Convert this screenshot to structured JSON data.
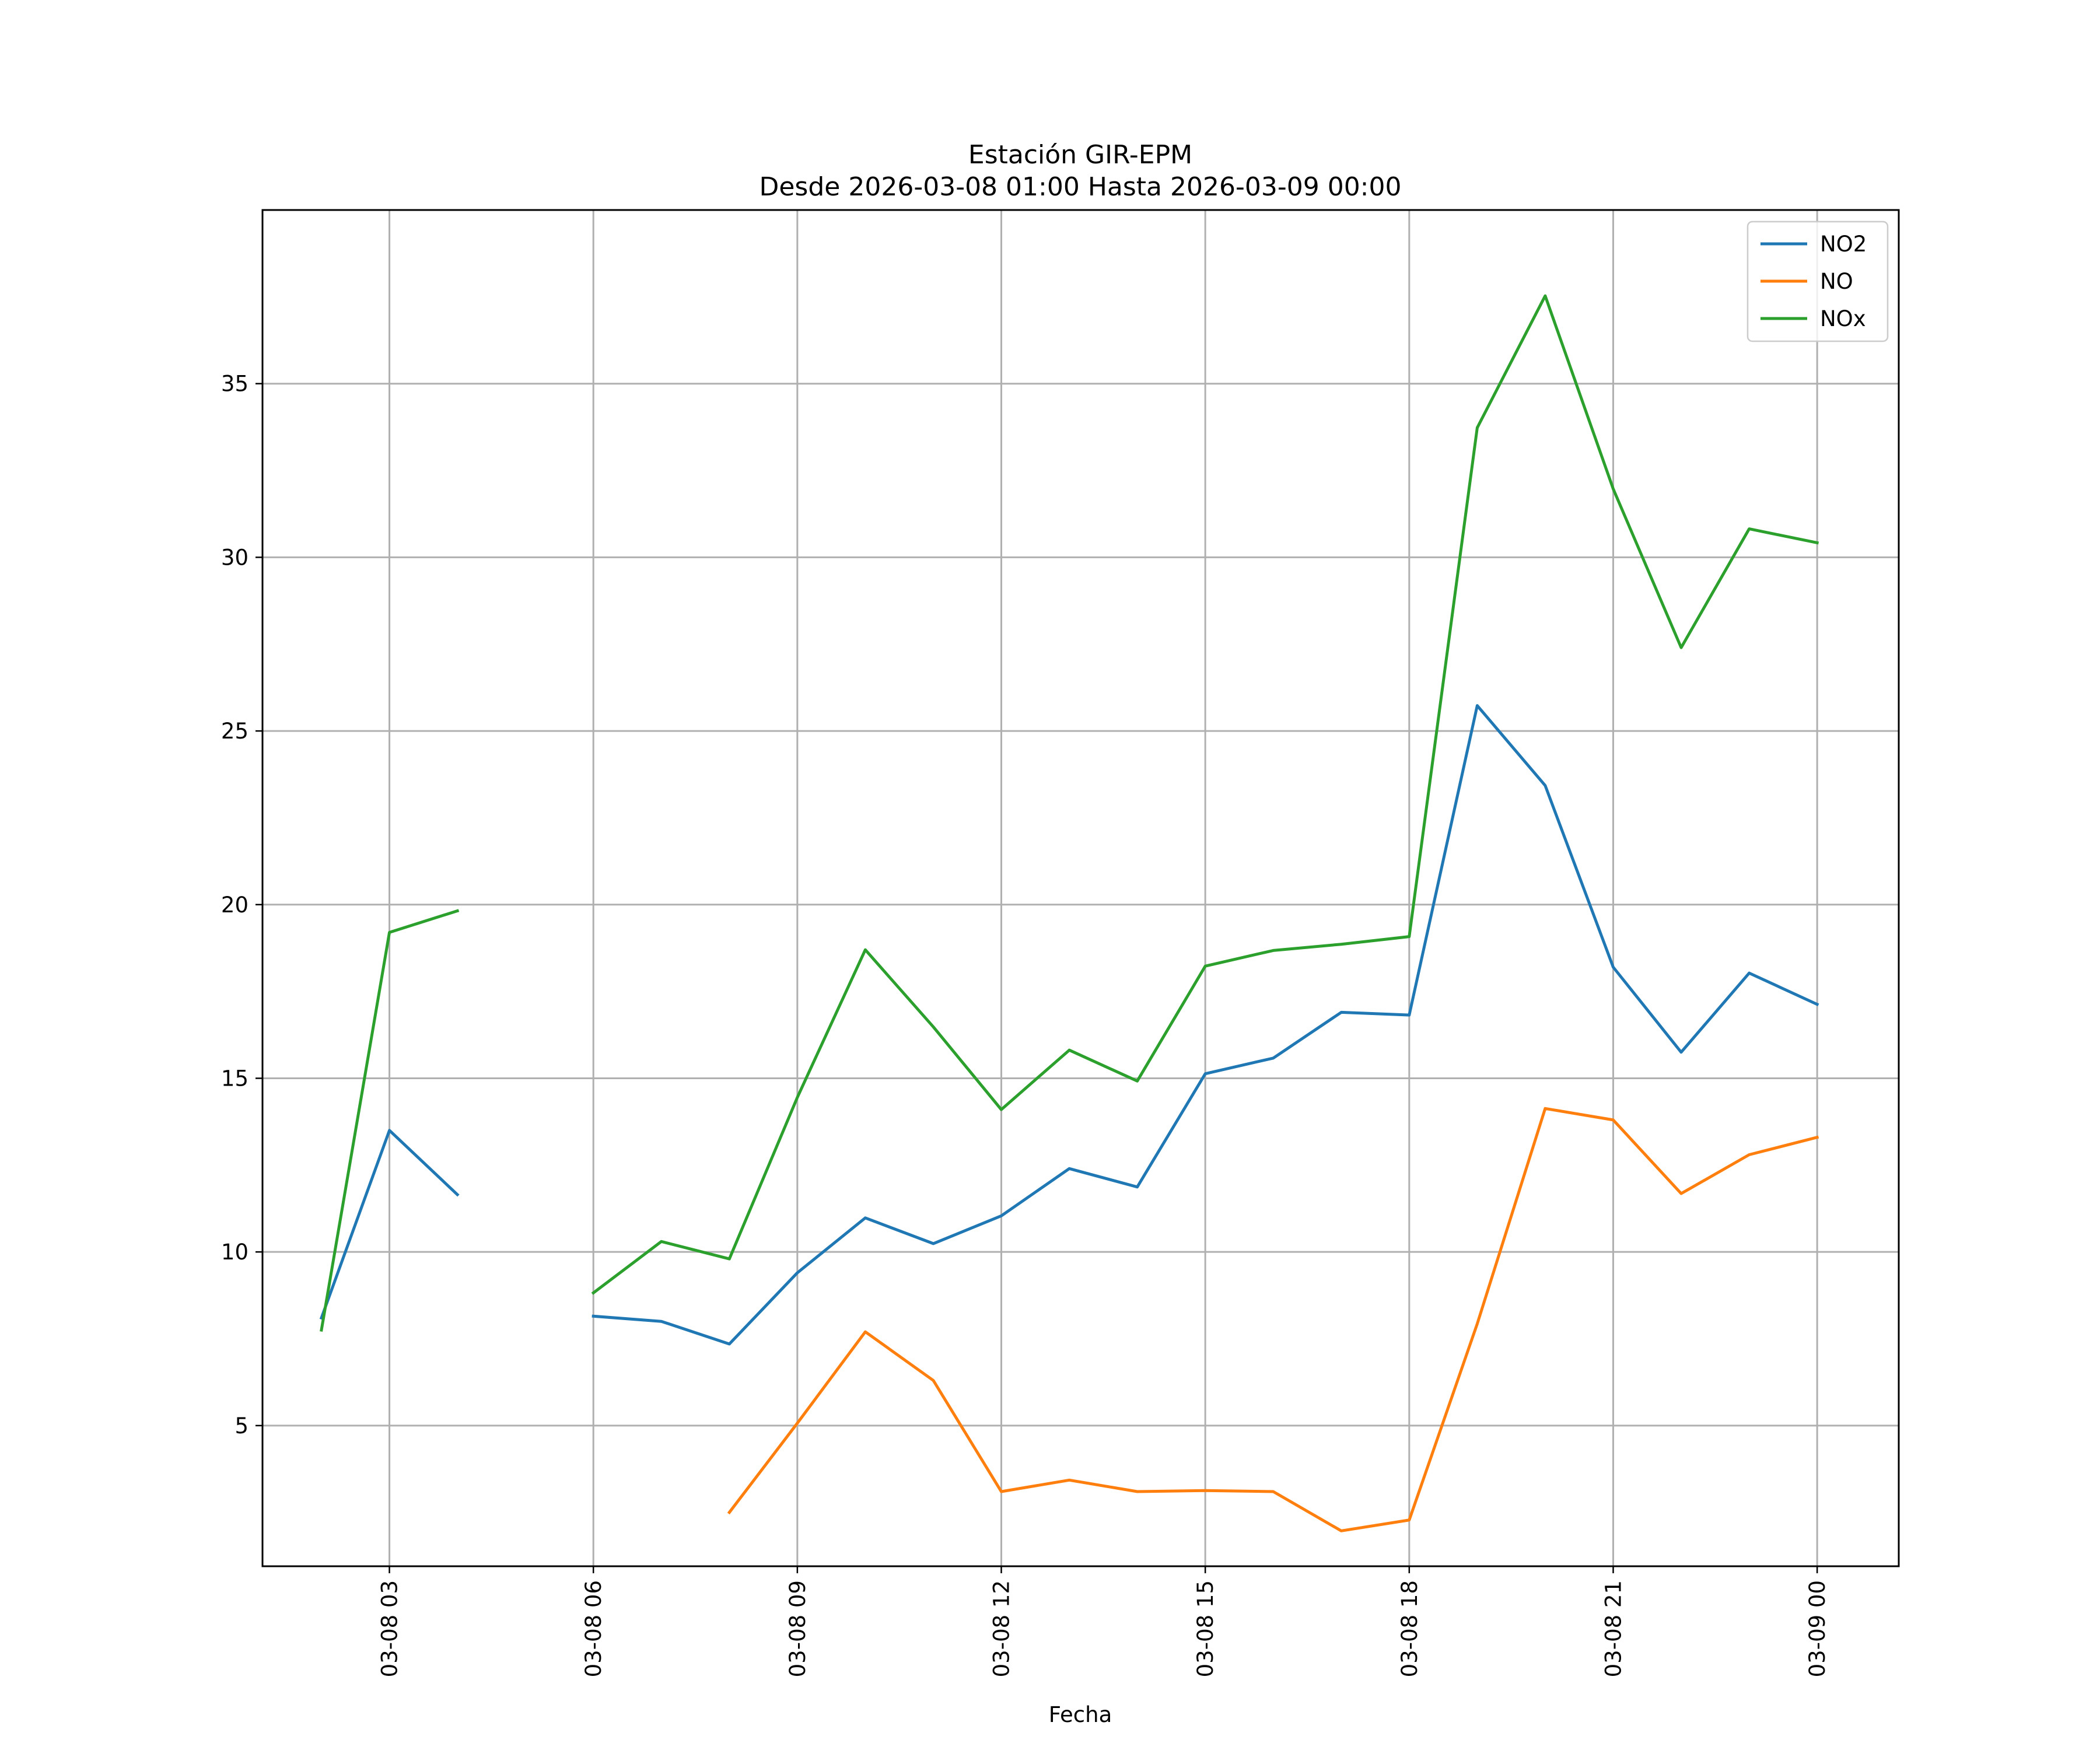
{
  "chart_data": {
    "type": "line",
    "title": "Estación GIR-EPM",
    "subtitle": "Desde 2026-03-08 01:00 Hasta 2026-03-09 00:00",
    "xlabel": "Fecha",
    "ylabel": "",
    "x": [
      "2026-03-08 02:00",
      "2026-03-08 03:00",
      "2026-03-08 04:00",
      "2026-03-08 05:00",
      "2026-03-08 06:00",
      "2026-03-08 07:00",
      "2026-03-08 08:00",
      "2026-03-08 09:00",
      "2026-03-08 10:00",
      "2026-03-08 11:00",
      "2026-03-08 12:00",
      "2026-03-08 13:00",
      "2026-03-08 14:00",
      "2026-03-08 15:00",
      "2026-03-08 16:00",
      "2026-03-08 17:00",
      "2026-03-08 18:00",
      "2026-03-08 19:00",
      "2026-03-08 20:00",
      "2026-03-08 21:00",
      "2026-03-08 22:00",
      "2026-03-08 23:00",
      "2026-03-09 00:00"
    ],
    "x_range": [
      "2026-03-08 01:08",
      "2026-03-09 01:12"
    ],
    "xticks": [
      "03-08 03",
      "03-08 06",
      "03-08 09",
      "03-08 12",
      "03-08 15",
      "03-08 18",
      "03-08 21",
      "03-09 00"
    ],
    "yticks": [
      5,
      10,
      15,
      20,
      25,
      30,
      35
    ],
    "ylim": [
      0.95,
      40.0
    ],
    "grid": true,
    "legend": "top-right",
    "series": [
      {
        "name": "NO2",
        "color": "#1f77b4",
        "values": [
          8.1,
          13.5,
          11.65,
          null,
          8.15,
          8.0,
          7.35,
          9.4,
          10.98,
          10.24,
          11.04,
          12.4,
          11.87,
          15.13,
          15.58,
          16.9,
          16.82,
          25.73,
          23.43,
          18.2,
          15.75,
          18.03,
          17.13
        ]
      },
      {
        "name": "NO",
        "color": "#ff7f0e",
        "values": [
          null,
          null,
          null,
          null,
          null,
          null,
          2.5,
          5.07,
          7.7,
          6.3,
          3.1,
          3.43,
          3.1,
          3.13,
          3.1,
          1.97,
          2.28,
          7.93,
          14.13,
          13.8,
          11.68,
          12.8,
          13.3
        ]
      },
      {
        "name": "NOx",
        "color": "#2ca02c",
        "values": [
          7.75,
          19.2,
          19.82,
          null,
          8.82,
          10.3,
          9.8,
          14.45,
          18.7,
          16.48,
          14.1,
          15.81,
          14.92,
          18.23,
          18.68,
          18.86,
          19.08,
          33.73,
          37.53,
          31.97,
          27.4,
          30.82,
          30.42
        ]
      }
    ]
  }
}
